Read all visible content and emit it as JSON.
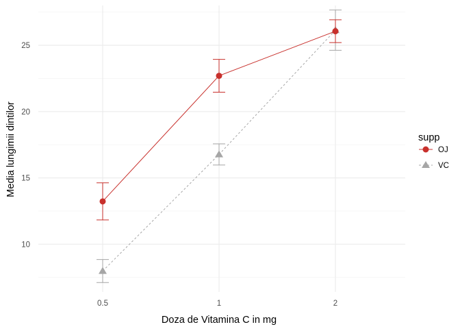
{
  "chart_data": {
    "type": "line",
    "xlabel": "Doza de Vitamina C in mg",
    "ylabel": "Media lungimii dintilor",
    "categories": [
      "0.5",
      "1",
      "2"
    ],
    "ylim": [
      6.4,
      28.0
    ],
    "yticks": [
      10,
      15,
      20,
      25
    ],
    "grid": true,
    "legend": {
      "title": "supp",
      "placement": "right"
    },
    "series": [
      {
        "name": "OJ",
        "color": "#c8302c",
        "marker": "circle",
        "line": "solid",
        "values": [
          13.23,
          22.7,
          26.06
        ],
        "error_low": [
          11.83,
          21.46,
          25.2
        ],
        "error_high": [
          14.63,
          23.94,
          26.92
        ]
      },
      {
        "name": "VC",
        "color": "#a6a6a6",
        "marker": "triangle",
        "line": "dashed",
        "values": [
          7.98,
          16.77,
          26.14
        ],
        "error_low": [
          7.11,
          15.97,
          24.62
        ],
        "error_high": [
          8.85,
          17.57,
          27.66
        ]
      }
    ]
  }
}
